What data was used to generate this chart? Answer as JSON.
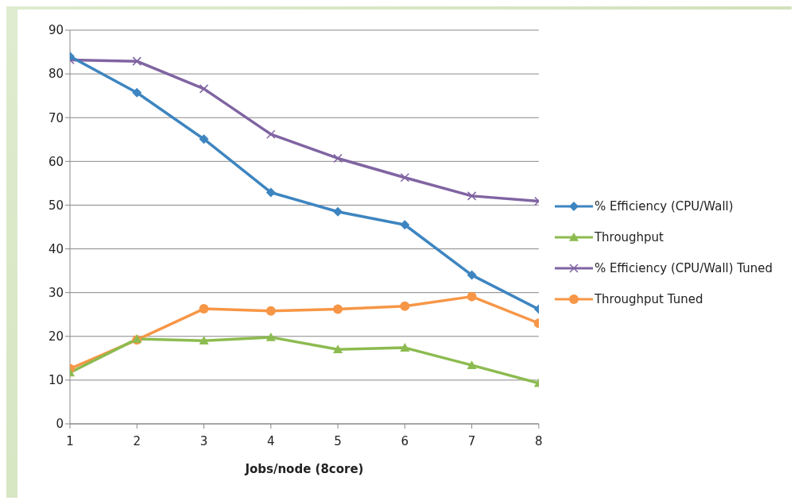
{
  "chart_data": {
    "type": "line",
    "xlabel": "Jobs/node (8core)",
    "x": [
      1,
      2,
      3,
      4,
      5,
      6,
      7,
      8
    ],
    "xlim": [
      1,
      8
    ],
    "xticks": [
      1,
      2,
      3,
      4,
      5,
      6,
      7,
      8
    ],
    "ylim": [
      0,
      90
    ],
    "yticks": [
      0,
      10,
      20,
      30,
      40,
      50,
      60,
      70,
      80,
      90
    ],
    "grid": "y",
    "legend": "right",
    "series": [
      {
        "name": "% Efficiency (CPU/Wall)",
        "color": "#3d85c0",
        "marker": "diamond",
        "values": [
          84,
          75.7,
          65.1,
          52.9,
          48.5,
          45.5,
          34,
          26.2
        ]
      },
      {
        "name": "Throughput",
        "color": "#8cbb4f",
        "marker": "triangle",
        "values": [
          11.7,
          19.4,
          19,
          19.8,
          17,
          17.4,
          13.4,
          9.3
        ]
      },
      {
        "name": "% Efficiency (CPU/Wall) Tuned",
        "color": "#8064a2",
        "marker": "cross",
        "values": [
          83.2,
          82.9,
          76.6,
          66.2,
          60.7,
          56.3,
          52.1,
          50.9
        ]
      },
      {
        "name": "Throughput Tuned",
        "color": "#f79646",
        "marker": "circle",
        "values": [
          12.6,
          19.2,
          26.3,
          25.8,
          26.2,
          26.9,
          29.1,
          23
        ]
      }
    ]
  }
}
